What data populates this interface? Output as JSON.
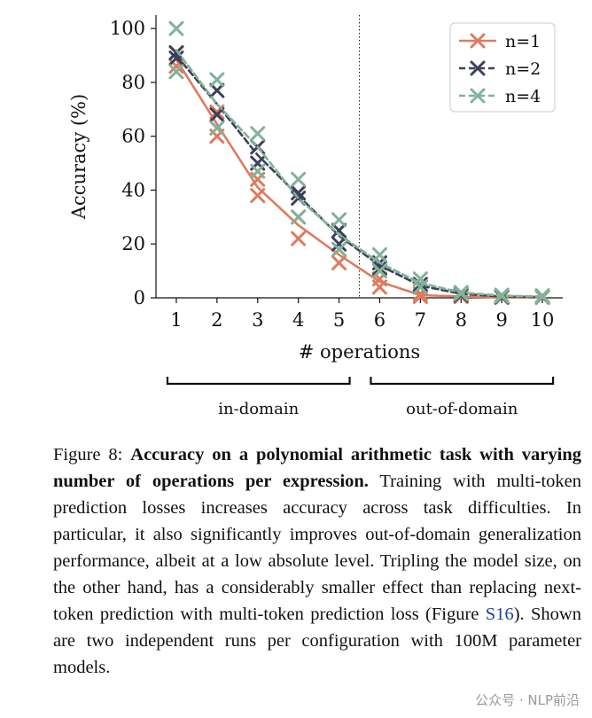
{
  "chart_data": {
    "type": "line",
    "title": "",
    "xlabel": "# operations",
    "ylabel": "Accuracy (%)",
    "xlim": [
      0.5,
      10.5
    ],
    "ylim": [
      0,
      105
    ],
    "x_ticks": [
      1,
      2,
      3,
      4,
      5,
      6,
      7,
      8,
      9,
      10
    ],
    "y_ticks": [
      0,
      20,
      40,
      60,
      80,
      100
    ],
    "divider_x": 5.5,
    "legend_position": "top-right",
    "series": [
      {
        "name": "n=1",
        "color": "#e07a5f",
        "dash": "solid",
        "x": [
          1,
          2,
          3,
          4,
          5,
          6,
          7,
          8,
          9,
          10
        ],
        "values": [
          88.5,
          64.5,
          41,
          27,
          16,
          6,
          1,
          0.5,
          0.2,
          0.2
        ],
        "points": [
          [
            1,
            91
          ],
          [
            1,
            86
          ],
          [
            2,
            69
          ],
          [
            2,
            60
          ],
          [
            3,
            44
          ],
          [
            3,
            38
          ],
          [
            4,
            30
          ],
          [
            4,
            22
          ],
          [
            5,
            18
          ],
          [
            5,
            13
          ],
          [
            6,
            7
          ],
          [
            6,
            4
          ],
          [
            7,
            1.5
          ],
          [
            7,
            0.5
          ],
          [
            8,
            0.5
          ],
          [
            8,
            0.5
          ],
          [
            9,
            0.2
          ],
          [
            9,
            0.2
          ],
          [
            10,
            0.2
          ],
          [
            10,
            0.2
          ]
        ]
      },
      {
        "name": "n=2",
        "color": "#3d405b",
        "dash": "dashed",
        "x": [
          1,
          2,
          3,
          4,
          5,
          6,
          7,
          8,
          9,
          10
        ],
        "values": [
          90,
          72,
          53,
          38,
          23,
          12,
          4.5,
          1.5,
          0.5,
          0.3
        ],
        "points": [
          [
            1,
            91
          ],
          [
            1,
            89
          ],
          [
            2,
            77
          ],
          [
            2,
            68
          ],
          [
            3,
            56
          ],
          [
            3,
            50
          ],
          [
            4,
            39
          ],
          [
            4,
            37
          ],
          [
            5,
            25
          ],
          [
            5,
            20
          ],
          [
            6,
            13
          ],
          [
            6,
            11
          ],
          [
            7,
            5
          ],
          [
            7,
            4
          ],
          [
            8,
            1.5
          ],
          [
            8,
            1
          ],
          [
            9,
            0.5
          ],
          [
            9,
            0.3
          ],
          [
            10,
            0.3
          ],
          [
            10,
            0.3
          ]
        ]
      },
      {
        "name": "n=4",
        "color": "#81b29a",
        "dash": "dashed",
        "x": [
          1,
          2,
          3,
          4,
          5,
          6,
          7,
          8,
          9,
          10
        ],
        "values": [
          92,
          72,
          56,
          37,
          23.5,
          13,
          5.5,
          2,
          0.8,
          0.5
        ],
        "points": [
          [
            1,
            100
          ],
          [
            1,
            84
          ],
          [
            2,
            81
          ],
          [
            2,
            63
          ],
          [
            3,
            61
          ],
          [
            3,
            47
          ],
          [
            4,
            44
          ],
          [
            4,
            30
          ],
          [
            5,
            29
          ],
          [
            5,
            18
          ],
          [
            6,
            16
          ],
          [
            6,
            10
          ],
          [
            7,
            7
          ],
          [
            7,
            4
          ],
          [
            8,
            2
          ],
          [
            8,
            1.5
          ],
          [
            9,
            1
          ],
          [
            9,
            0.6
          ],
          [
            10,
            0.8
          ],
          [
            10,
            0.3
          ]
        ]
      }
    ],
    "brackets": [
      {
        "label": "in-domain",
        "from": 1,
        "to": 5
      },
      {
        "label": "out-of-domain",
        "from": 6,
        "to": 10
      }
    ]
  },
  "caption": {
    "prefix": "Figure 8: ",
    "bold": "Accuracy on a polynomial arithmetic task with varying number of operations per expression.",
    "text1": " Training with multi-token prediction losses increases accuracy across task difficulties. In particular, it also significantly improves out-of-domain generalization performance, albeit at a low absolute level. Tripling the model size, on the other hand, has a considerably smaller effect than replacing next-token prediction with multi-token prediction loss (Figure ",
    "ref": "S16",
    "text2": "). Shown are two independent runs per configuration with 100M parameter models."
  },
  "watermark": "公众号 · NLP前沿"
}
